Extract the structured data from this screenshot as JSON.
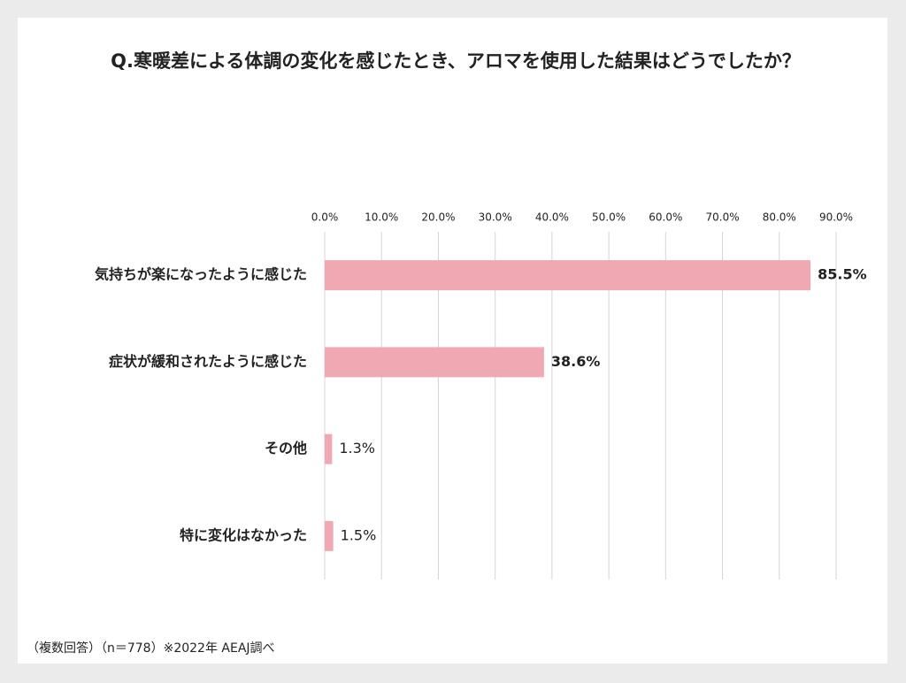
{
  "chart_data": {
    "type": "bar",
    "orientation": "horizontal",
    "title": "Q.寒暖差による体調の変化を感じたとき、アロマを使用した結果はどうでしたか？",
    "categories": [
      "気持ちが楽になったように感じた",
      "症状が緩和されたように感じた",
      "その他",
      "特に変化はなかった"
    ],
    "values": [
      85.5,
      38.6,
      1.3,
      1.5
    ],
    "value_labels": [
      "85.5%",
      "38.6%",
      "1.3%",
      "1.5%"
    ],
    "color": "#f0a8b2",
    "xlim": [
      0,
      90
    ],
    "xticks": [
      {
        "value": 0,
        "label": "0.0%"
      },
      {
        "value": 10,
        "label": "10.0%"
      },
      {
        "value": 20,
        "label": "20.0%"
      },
      {
        "value": 30,
        "label": "30.0%"
      },
      {
        "value": 40,
        "label": "40.0%"
      },
      {
        "value": 50,
        "label": "50.0%"
      },
      {
        "value": 60,
        "label": "60.0%"
      },
      {
        "value": 70,
        "label": "70.0%"
      },
      {
        "value": 80,
        "label": "80.0%"
      },
      {
        "value": 90,
        "label": "90.0%"
      }
    ],
    "grid": true,
    "note": "（複数回答）（n＝778）※2022年 AEAJ調べ"
  }
}
